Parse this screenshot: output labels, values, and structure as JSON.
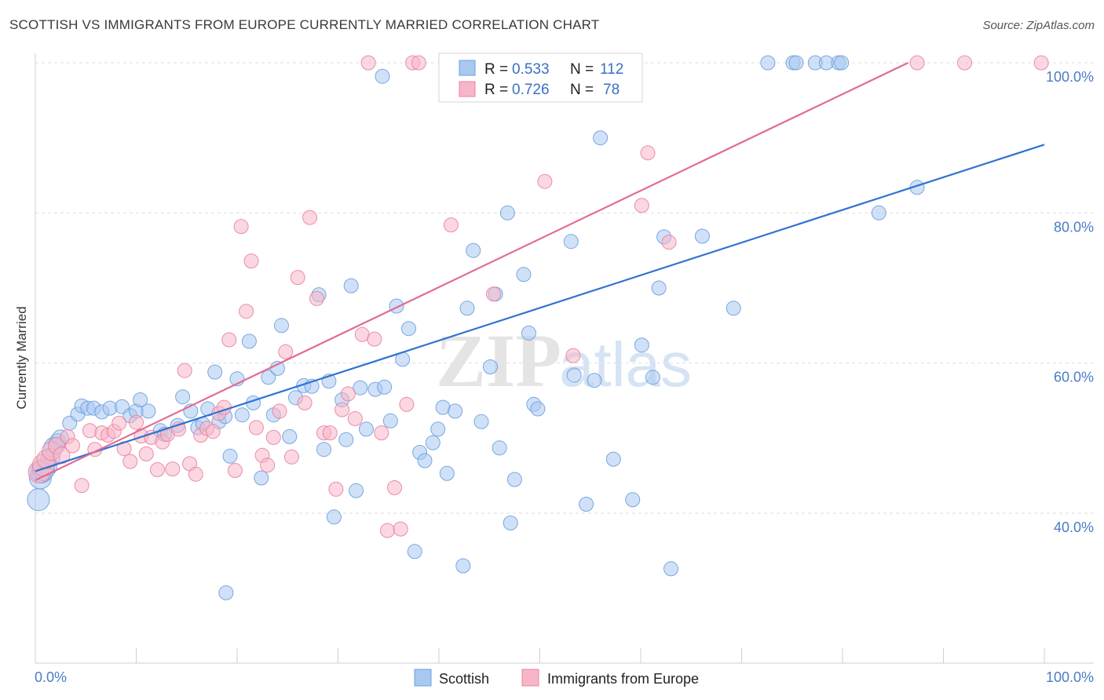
{
  "header": {
    "title": "SCOTTISH VS IMMIGRANTS FROM EUROPE CURRENTLY MARRIED CORRELATION CHART",
    "source": "Source: ZipAtlas.com"
  },
  "watermark": {
    "zip": "ZIP",
    "atlas": "atlas"
  },
  "legend": {
    "rows": [
      {
        "r_label": "R =",
        "r_value": "0.533",
        "n_label": "N =",
        "n_value": "112",
        "color": "#a9c8f0"
      },
      {
        "r_label": "R =",
        "r_value": "0.726",
        "n_label": "N =",
        "n_value": "78",
        "color": "#f7b6c8"
      }
    ]
  },
  "bottom_legend": {
    "items": [
      {
        "label": "Scottish",
        "color": "#a9c8f0"
      },
      {
        "label": "Immigrants from Europe",
        "color": "#f7b6c8"
      }
    ]
  },
  "chart_data": {
    "type": "scatter",
    "ylabel": "Currently Married",
    "xlabel": "",
    "xlim": [
      0,
      100
    ],
    "ylim": [
      24,
      103
    ],
    "x_ticks": [
      "0.0%",
      "100.0%"
    ],
    "y_ticks": [
      {
        "value": 40,
        "label": "40.0%"
      },
      {
        "value": 60,
        "label": "60.0%"
      },
      {
        "value": 80,
        "label": "80.0%"
      },
      {
        "value": 100,
        "label": "100.0%"
      }
    ],
    "grid": true,
    "legend_position": "top-center",
    "series": [
      {
        "name": "Scottish",
        "color": "#6a9fe0",
        "fill": "#a9c8f0",
        "trend": {
          "x": [
            0,
            100
          ],
          "y": [
            45.6,
            89.1
          ]
        },
        "points": [
          [
            0.3,
            41.8
          ],
          [
            0.5,
            44.7
          ],
          [
            0.6,
            45.5
          ],
          [
            1.2,
            46.2
          ],
          [
            1.8,
            48.8
          ],
          [
            2.2,
            49.5
          ],
          [
            2.5,
            50.0
          ],
          [
            3.4,
            52.0
          ],
          [
            4.2,
            53.2
          ],
          [
            4.6,
            54.3
          ],
          [
            5.2,
            54.0
          ],
          [
            5.8,
            54.0
          ],
          [
            6.6,
            53.5
          ],
          [
            7.4,
            54.0
          ],
          [
            8.6,
            54.2
          ],
          [
            9.4,
            53.0
          ],
          [
            10.0,
            53.6
          ],
          [
            10.4,
            55.1
          ],
          [
            11.2,
            53.6
          ],
          [
            12.4,
            51.0
          ],
          [
            12.8,
            50.5
          ],
          [
            14.1,
            51.7
          ],
          [
            14.6,
            55.5
          ],
          [
            15.4,
            53.6
          ],
          [
            16.1,
            51.4
          ],
          [
            16.6,
            51.9
          ],
          [
            17.1,
            53.9
          ],
          [
            17.8,
            58.8
          ],
          [
            18.2,
            52.2
          ],
          [
            18.8,
            52.9
          ],
          [
            19.3,
            47.6
          ],
          [
            20.0,
            57.9
          ],
          [
            20.5,
            53.1
          ],
          [
            21.2,
            62.9
          ],
          [
            21.6,
            54.7
          ],
          [
            22.4,
            44.7
          ],
          [
            23.1,
            58.1
          ],
          [
            23.6,
            53.1
          ],
          [
            24.0,
            59.3
          ],
          [
            24.4,
            65.0
          ],
          [
            25.2,
            50.2
          ],
          [
            25.8,
            55.4
          ],
          [
            26.6,
            57.0
          ],
          [
            27.4,
            56.9
          ],
          [
            28.1,
            69.1
          ],
          [
            28.6,
            48.5
          ],
          [
            29.1,
            57.6
          ],
          [
            29.6,
            39.5
          ],
          [
            30.4,
            55.1
          ],
          [
            30.8,
            49.8
          ],
          [
            31.3,
            70.3
          ],
          [
            31.8,
            43.0
          ],
          [
            32.2,
            56.7
          ],
          [
            32.8,
            51.2
          ],
          [
            33.7,
            56.5
          ],
          [
            34.6,
            56.8
          ],
          [
            35.2,
            52.3
          ],
          [
            35.8,
            67.6
          ],
          [
            36.4,
            60.5
          ],
          [
            37.0,
            64.6
          ],
          [
            37.6,
            34.9
          ],
          [
            38.1,
            48.1
          ],
          [
            38.6,
            47.0
          ],
          [
            39.4,
            49.4
          ],
          [
            39.9,
            51.2
          ],
          [
            40.4,
            54.1
          ],
          [
            40.8,
            45.3
          ],
          [
            41.6,
            53.6
          ],
          [
            42.4,
            33.0
          ],
          [
            42.8,
            67.3
          ],
          [
            43.4,
            75.0
          ],
          [
            44.2,
            52.2
          ],
          [
            45.1,
            59.5
          ],
          [
            45.6,
            69.2
          ],
          [
            46.0,
            48.7
          ],
          [
            46.8,
            80.0
          ],
          [
            47.1,
            38.7
          ],
          [
            47.5,
            44.5
          ],
          [
            48.4,
            71.8
          ],
          [
            48.9,
            64.0
          ],
          [
            49.4,
            54.5
          ],
          [
            49.8,
            53.9
          ],
          [
            51.2,
            97.5
          ],
          [
            51.8,
            100.0
          ],
          [
            53.1,
            76.2
          ],
          [
            53.4,
            58.4
          ],
          [
            54.6,
            41.2
          ],
          [
            55.4,
            57.7
          ],
          [
            56.0,
            90.0
          ],
          [
            57.3,
            47.2
          ],
          [
            57.6,
            100.0
          ],
          [
            59.2,
            41.8
          ],
          [
            60.1,
            62.4
          ],
          [
            61.2,
            58.1
          ],
          [
            61.8,
            70.0
          ],
          [
            62.3,
            76.8
          ],
          [
            63.0,
            32.6
          ],
          [
            66.1,
            76.9
          ],
          [
            69.2,
            67.3
          ],
          [
            72.6,
            100.0
          ],
          [
            75.1,
            100.0
          ],
          [
            75.4,
            100.0
          ],
          [
            77.3,
            100.0
          ],
          [
            78.4,
            100.0
          ],
          [
            79.6,
            100.0
          ],
          [
            79.9,
            100.0
          ],
          [
            83.6,
            80.0
          ],
          [
            87.4,
            83.4
          ],
          [
            0.8,
            45.8
          ],
          [
            1.5,
            47.4
          ],
          [
            34.4,
            98.2
          ],
          [
            18.9,
            29.4
          ]
        ]
      },
      {
        "name": "Immigrants from Europe",
        "color": "#e8829f",
        "fill": "#f7b6c8",
        "trend": {
          "x": [
            0,
            86.5
          ],
          "y": [
            44.4,
            100.0
          ]
        },
        "points": [
          [
            0.4,
            45.5
          ],
          [
            0.8,
            46.4
          ],
          [
            1.1,
            47.2
          ],
          [
            1.6,
            48.3
          ],
          [
            2.1,
            49.0
          ],
          [
            2.6,
            47.7
          ],
          [
            3.2,
            50.2
          ],
          [
            3.7,
            49.0
          ],
          [
            4.6,
            43.7
          ],
          [
            5.4,
            51.0
          ],
          [
            5.9,
            48.5
          ],
          [
            6.6,
            50.7
          ],
          [
            7.2,
            50.4
          ],
          [
            7.8,
            50.9
          ],
          [
            8.3,
            52.0
          ],
          [
            8.8,
            48.6
          ],
          [
            9.4,
            46.9
          ],
          [
            10.0,
            52.1
          ],
          [
            10.5,
            50.3
          ],
          [
            11.0,
            47.9
          ],
          [
            11.5,
            50.1
          ],
          [
            12.1,
            45.8
          ],
          [
            12.6,
            49.5
          ],
          [
            13.1,
            50.5
          ],
          [
            13.6,
            45.9
          ],
          [
            14.2,
            51.2
          ],
          [
            14.8,
            59.0
          ],
          [
            15.3,
            46.6
          ],
          [
            15.9,
            45.2
          ],
          [
            16.4,
            50.4
          ],
          [
            17.0,
            51.3
          ],
          [
            17.6,
            50.9
          ],
          [
            18.2,
            53.3
          ],
          [
            18.7,
            54.1
          ],
          [
            19.2,
            63.1
          ],
          [
            19.8,
            45.7
          ],
          [
            20.4,
            78.2
          ],
          [
            20.9,
            66.9
          ],
          [
            21.4,
            73.6
          ],
          [
            21.9,
            51.4
          ],
          [
            22.5,
            47.7
          ],
          [
            23.0,
            46.4
          ],
          [
            23.6,
            50.1
          ],
          [
            24.2,
            53.6
          ],
          [
            24.8,
            61.5
          ],
          [
            25.4,
            47.5
          ],
          [
            26.0,
            71.4
          ],
          [
            26.7,
            54.7
          ],
          [
            27.2,
            79.4
          ],
          [
            27.9,
            68.6
          ],
          [
            28.6,
            50.7
          ],
          [
            29.2,
            50.7
          ],
          [
            29.8,
            43.2
          ],
          [
            30.4,
            53.8
          ],
          [
            31.0,
            55.9
          ],
          [
            31.7,
            52.6
          ],
          [
            32.4,
            63.8
          ],
          [
            33.0,
            100.0
          ],
          [
            33.6,
            63.2
          ],
          [
            34.3,
            50.7
          ],
          [
            34.9,
            37.7
          ],
          [
            35.6,
            43.4
          ],
          [
            36.2,
            37.9
          ],
          [
            36.8,
            54.5
          ],
          [
            37.4,
            100.0
          ],
          [
            38.0,
            100.0
          ],
          [
            41.2,
            78.4
          ],
          [
            45.4,
            69.2
          ],
          [
            50.5,
            84.2
          ],
          [
            52.2,
            100.0
          ],
          [
            56.7,
            100.0
          ],
          [
            60.1,
            81.0
          ],
          [
            60.7,
            88.0
          ],
          [
            62.8,
            76.1
          ],
          [
            87.4,
            100.0
          ],
          [
            92.1,
            100.0
          ],
          [
            99.7,
            100.0
          ],
          [
            53.3,
            61.0
          ]
        ]
      }
    ]
  }
}
